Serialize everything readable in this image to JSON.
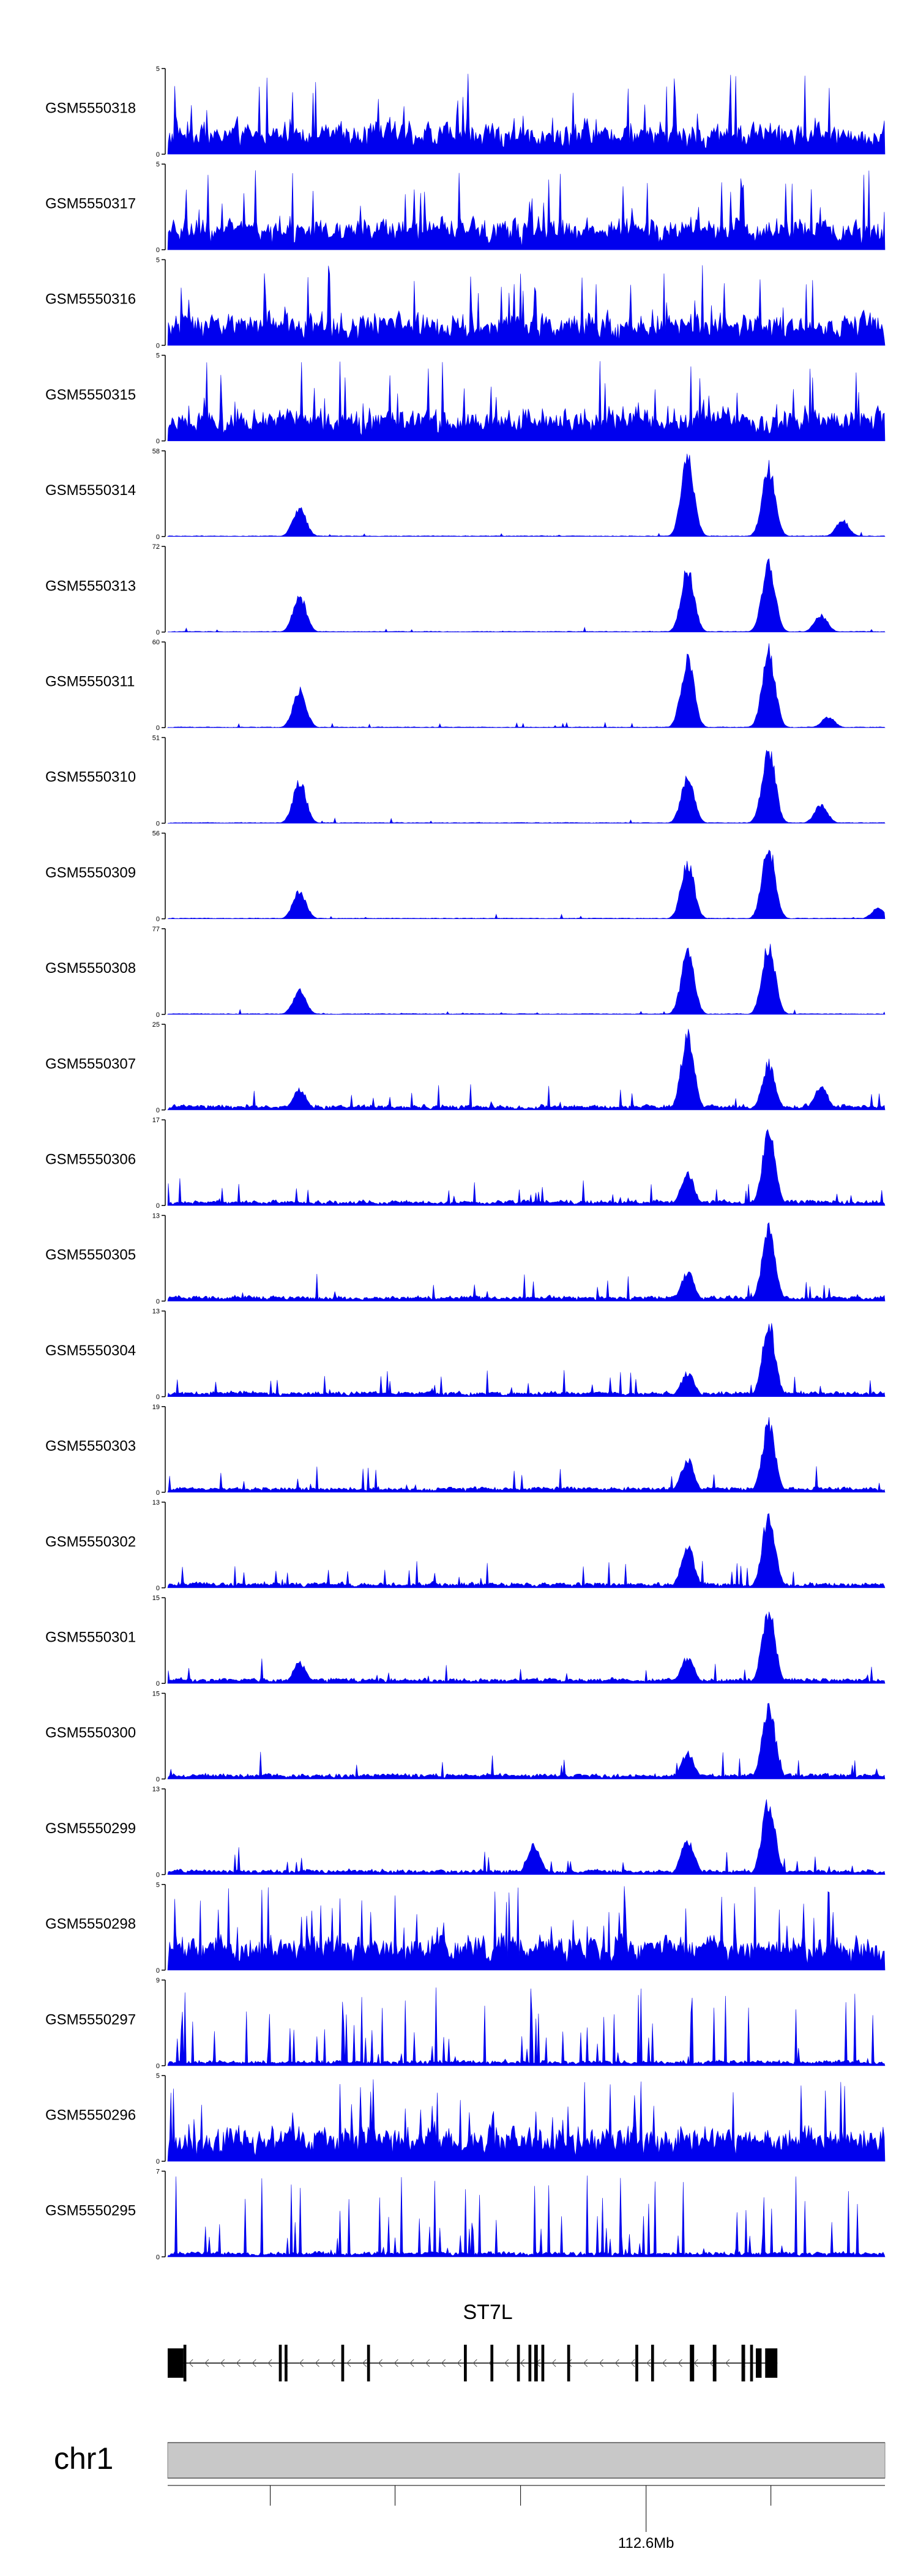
{
  "chart_data": {
    "type": "area",
    "color": "#0000ee",
    "axis_color": "#000000",
    "gene_color": "#000000",
    "chrom_band_color": "#c8c8c8",
    "tracks": [
      {
        "name": "GSM5550318",
        "ymax": "5",
        "ymin": "0",
        "max_value": 5,
        "profile": "noise",
        "peaks": []
      },
      {
        "name": "GSM5550317",
        "ymax": "5",
        "ymin": "0",
        "max_value": 5,
        "profile": "noise",
        "peaks": []
      },
      {
        "name": "GSM5550316",
        "ymax": "5",
        "ymin": "0",
        "max_value": 5,
        "profile": "noise",
        "peaks": []
      },
      {
        "name": "GSM5550315",
        "ymax": "5",
        "ymin": "0",
        "max_value": 5,
        "profile": "noise",
        "peaks": []
      },
      {
        "name": "GSM5550314",
        "ymax": "58",
        "ymin": "0",
        "max_value": 58,
        "profile": "peaky",
        "peaks": [
          {
            "pos": 0.183,
            "height": 22
          },
          {
            "pos": 0.724,
            "height": 58
          },
          {
            "pos": 0.837,
            "height": 52
          },
          {
            "pos": 0.94,
            "height": 12
          }
        ]
      },
      {
        "name": "GSM5550313",
        "ymax": "72",
        "ymin": "0",
        "max_value": 72,
        "profile": "peaky",
        "peaks": [
          {
            "pos": 0.183,
            "height": 34
          },
          {
            "pos": 0.724,
            "height": 58
          },
          {
            "pos": 0.837,
            "height": 65
          },
          {
            "pos": 0.91,
            "height": 16
          }
        ]
      },
      {
        "name": "GSM5550311",
        "ymax": "60",
        "ymin": "0",
        "max_value": 60,
        "profile": "peaky",
        "peaks": [
          {
            "pos": 0.183,
            "height": 30
          },
          {
            "pos": 0.724,
            "height": 54
          },
          {
            "pos": 0.837,
            "height": 60
          },
          {
            "pos": 0.92,
            "height": 8
          }
        ]
      },
      {
        "name": "GSM5550310",
        "ymax": "51",
        "ymin": "0",
        "max_value": 51,
        "profile": "peaky",
        "peaks": [
          {
            "pos": 0.183,
            "height": 28
          },
          {
            "pos": 0.724,
            "height": 30
          },
          {
            "pos": 0.837,
            "height": 51
          },
          {
            "pos": 0.91,
            "height": 12
          }
        ]
      },
      {
        "name": "GSM5550309",
        "ymax": "56",
        "ymin": "0",
        "max_value": 56,
        "profile": "peaky",
        "peaks": [
          {
            "pos": 0.183,
            "height": 20
          },
          {
            "pos": 0.724,
            "height": 42
          },
          {
            "pos": 0.837,
            "height": 52
          },
          {
            "pos": 0.99,
            "height": 8
          }
        ]
      },
      {
        "name": "GSM5550308",
        "ymax": "77",
        "ymin": "0",
        "max_value": 77,
        "profile": "peaky",
        "peaks": [
          {
            "pos": 0.183,
            "height": 24
          },
          {
            "pos": 0.724,
            "height": 62
          },
          {
            "pos": 0.837,
            "height": 70
          }
        ]
      },
      {
        "name": "GSM5550307",
        "ymax": "25",
        "ymin": "0",
        "max_value": 25,
        "profile": "medium",
        "peaks": [
          {
            "pos": 0.183,
            "height": 7
          },
          {
            "pos": 0.724,
            "height": 24
          },
          {
            "pos": 0.837,
            "height": 15
          },
          {
            "pos": 0.91,
            "height": 8
          }
        ]
      },
      {
        "name": "GSM5550306",
        "ymax": "17",
        "ymin": "0",
        "max_value": 17,
        "profile": "medium",
        "peaks": [
          {
            "pos": 0.724,
            "height": 7
          },
          {
            "pos": 0.837,
            "height": 16
          }
        ]
      },
      {
        "name": "GSM5550305",
        "ymax": "13",
        "ymin": "0",
        "max_value": 13,
        "profile": "medium",
        "peaks": [
          {
            "pos": 0.724,
            "height": 5
          },
          {
            "pos": 0.837,
            "height": 12.5
          }
        ]
      },
      {
        "name": "GSM5550304",
        "ymax": "13",
        "ymin": "0",
        "max_value": 13,
        "profile": "medium",
        "peaks": [
          {
            "pos": 0.724,
            "height": 4
          },
          {
            "pos": 0.837,
            "height": 12.5
          }
        ]
      },
      {
        "name": "GSM5550303",
        "ymax": "19",
        "ymin": "0",
        "max_value": 19,
        "profile": "medium",
        "peaks": [
          {
            "pos": 0.724,
            "height": 8
          },
          {
            "pos": 0.837,
            "height": 17
          }
        ]
      },
      {
        "name": "GSM5550302",
        "ymax": "13",
        "ymin": "0",
        "max_value": 13,
        "profile": "medium",
        "peaks": [
          {
            "pos": 0.724,
            "height": 7
          },
          {
            "pos": 0.837,
            "height": 12.5
          }
        ]
      },
      {
        "name": "GSM5550301",
        "ymax": "15",
        "ymin": "0",
        "max_value": 15,
        "profile": "medium",
        "peaks": [
          {
            "pos": 0.183,
            "height": 4
          },
          {
            "pos": 0.724,
            "height": 5
          },
          {
            "pos": 0.837,
            "height": 14.5
          }
        ]
      },
      {
        "name": "GSM5550300",
        "ymax": "15",
        "ymin": "0",
        "max_value": 15,
        "profile": "medium",
        "peaks": [
          {
            "pos": 0.724,
            "height": 5
          },
          {
            "pos": 0.837,
            "height": 14.5
          }
        ]
      },
      {
        "name": "GSM5550299",
        "ymax": "13",
        "ymin": "0",
        "max_value": 13,
        "profile": "medium",
        "peaks": [
          {
            "pos": 0.51,
            "height": 5
          },
          {
            "pos": 0.724,
            "height": 6
          },
          {
            "pos": 0.837,
            "height": 12.5
          }
        ]
      },
      {
        "name": "GSM5550298",
        "ymax": "5",
        "ymin": "0",
        "max_value": 5,
        "profile": "dense",
        "peaks": []
      },
      {
        "name": "GSM5550297",
        "ymax": "9",
        "ymin": "0",
        "max_value": 9,
        "profile": "spiky",
        "peaks": []
      },
      {
        "name": "GSM5550296",
        "ymax": "5",
        "ymin": "0",
        "max_value": 5,
        "profile": "dense",
        "peaks": []
      },
      {
        "name": "GSM5550295",
        "ymax": "7",
        "ymin": "0",
        "max_value": 7,
        "profile": "spiky",
        "peaks": []
      }
    ],
    "gene": {
      "name": "ST7L",
      "strand": "-",
      "start": 0.0,
      "end": 0.85,
      "exons": [
        {
          "s": 0.0,
          "e": 0.022
        },
        {
          "s": 0.022,
          "e": 0.026
        },
        {
          "s": 0.155,
          "e": 0.159
        },
        {
          "s": 0.163,
          "e": 0.167
        },
        {
          "s": 0.242,
          "e": 0.246
        },
        {
          "s": 0.278,
          "e": 0.282
        },
        {
          "s": 0.413,
          "e": 0.417
        },
        {
          "s": 0.45,
          "e": 0.454
        },
        {
          "s": 0.487,
          "e": 0.491
        },
        {
          "s": 0.503,
          "e": 0.507
        },
        {
          "s": 0.511,
          "e": 0.516
        },
        {
          "s": 0.521,
          "e": 0.525
        },
        {
          "s": 0.557,
          "e": 0.561
        },
        {
          "s": 0.652,
          "e": 0.656
        },
        {
          "s": 0.674,
          "e": 0.678
        },
        {
          "s": 0.728,
          "e": 0.734
        },
        {
          "s": 0.76,
          "e": 0.765
        },
        {
          "s": 0.8,
          "e": 0.805
        },
        {
          "s": 0.812,
          "e": 0.816
        },
        {
          "s": 0.82,
          "e": 0.828
        },
        {
          "s": 0.833,
          "e": 0.85
        }
      ]
    },
    "chromosome": {
      "name": "chr1",
      "tick_positions": [
        0.143,
        0.317,
        0.492,
        0.667,
        0.841
      ],
      "labeled_tick": {
        "pos": 0.667,
        "label": "112.6Mb"
      }
    }
  }
}
